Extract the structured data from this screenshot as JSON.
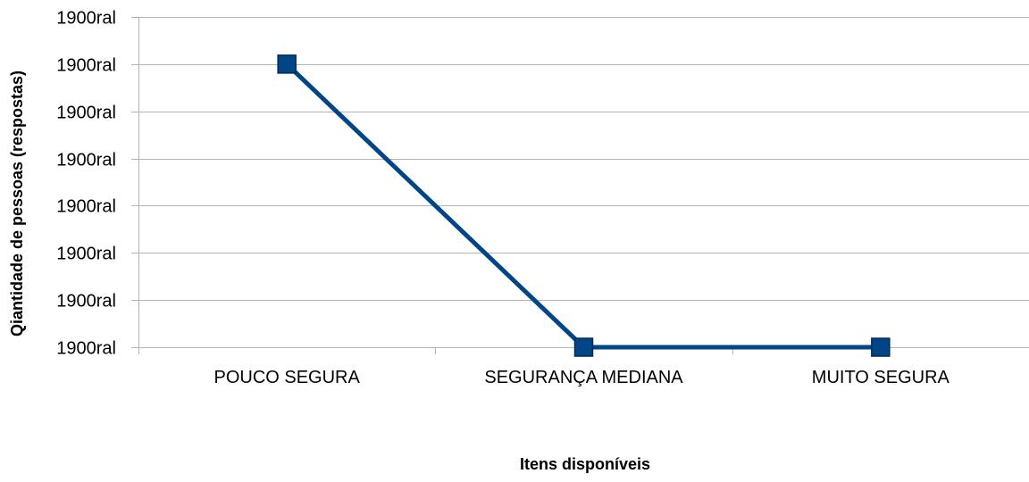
{
  "chart_data": {
    "type": "line",
    "title": "",
    "xlabel": "Itens disponíveis",
    "ylabel": "Qiantidade de pessoas (respostas)",
    "categories": [
      "POUCO SEGURA",
      "SEGURANÇA MEDIANA",
      "MUITO SEGURA"
    ],
    "series": [
      {
        "values": [
          6,
          0,
          0
        ],
        "color": "#004586",
        "marker": "square"
      }
    ],
    "ylim": [
      0,
      7
    ],
    "yticks": [
      0,
      1,
      2,
      3,
      4,
      5,
      6,
      7
    ],
    "ytick_labels": [
      "1900ral",
      "1900ral",
      "1900ral",
      "1900ral",
      "1900ral",
      "1900ral",
      "1900ral",
      "1900ral"
    ],
    "grid": true,
    "legend": "none"
  }
}
